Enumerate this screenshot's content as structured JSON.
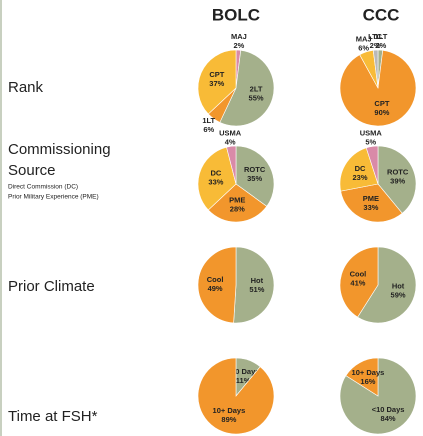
{
  "columns": [
    "BOLC",
    "CCC"
  ],
  "rows": [
    {
      "label": "Rank"
    },
    {
      "label": "Commissioning Source",
      "lines": [
        "Commissioning",
        "Source"
      ],
      "notes": [
        "Direct Commission (DC)",
        "Prior Military Experience (PME)"
      ]
    },
    {
      "label": "Prior Climate"
    },
    {
      "label": "Time at FSH*"
    }
  ],
  "chart_data": [
    {
      "type": "pie",
      "categories": [
        "MAJ",
        "2LT",
        "1LT",
        "CPT"
      ],
      "values": [
        2,
        55,
        6,
        37
      ],
      "value_labels": [
        "2%",
        "55%",
        "6%",
        "37%"
      ],
      "colors": [
        "#d98aa8",
        "#a4b08b",
        "#f2962c",
        "#f8bb37"
      ]
    },
    {
      "type": "pie",
      "categories": [
        "1LT",
        "CPT",
        "MAJ",
        "LTC"
      ],
      "values": [
        2,
        90,
        6,
        2
      ],
      "value_labels": [
        "2%",
        "90%",
        "6%",
        "2%"
      ],
      "colors": [
        "#a4b08b",
        "#f2962c",
        "#f8bb37",
        "#b9b9b9"
      ]
    },
    {
      "type": "pie",
      "categories": [
        "ROTC",
        "PME",
        "DC",
        "USMA"
      ],
      "values": [
        35,
        28,
        33,
        4
      ],
      "value_labels": [
        "35%",
        "28%",
        "33%",
        "4%"
      ],
      "colors": [
        "#a4b08b",
        "#f2962c",
        "#f8bb37",
        "#d98aa8"
      ]
    },
    {
      "type": "pie",
      "categories": [
        "ROTC",
        "PME",
        "DC",
        "USMA"
      ],
      "values": [
        39,
        33,
        23,
        5
      ],
      "value_labels": [
        "39%",
        "33%",
        "23%",
        "5%"
      ],
      "colors": [
        "#a4b08b",
        "#f2962c",
        "#f8bb37",
        "#d98aa8"
      ]
    },
    {
      "type": "pie",
      "categories": [
        "Hot",
        "Cool"
      ],
      "values": [
        51,
        49
      ],
      "value_labels": [
        "51%",
        "49%"
      ],
      "colors": [
        "#a4b08b",
        "#f2962c"
      ]
    },
    {
      "type": "pie",
      "categories": [
        "Hot",
        "Cool"
      ],
      "values": [
        59,
        41
      ],
      "value_labels": [
        "59%",
        "41%"
      ],
      "colors": [
        "#a4b08b",
        "#f2962c"
      ]
    },
    {
      "type": "pie",
      "categories": [
        "<10 Days",
        "10+ Days"
      ],
      "values": [
        11,
        89
      ],
      "value_labels": [
        "11%",
        "89%"
      ],
      "colors": [
        "#a4b08b",
        "#f2962c"
      ]
    },
    {
      "type": "pie",
      "categories": [
        "<10 Days",
        "10+ Days"
      ],
      "values": [
        84,
        16
      ],
      "value_labels": [
        "84%",
        "16%"
      ],
      "colors": [
        "#a4b08b",
        "#f2962c"
      ]
    }
  ]
}
